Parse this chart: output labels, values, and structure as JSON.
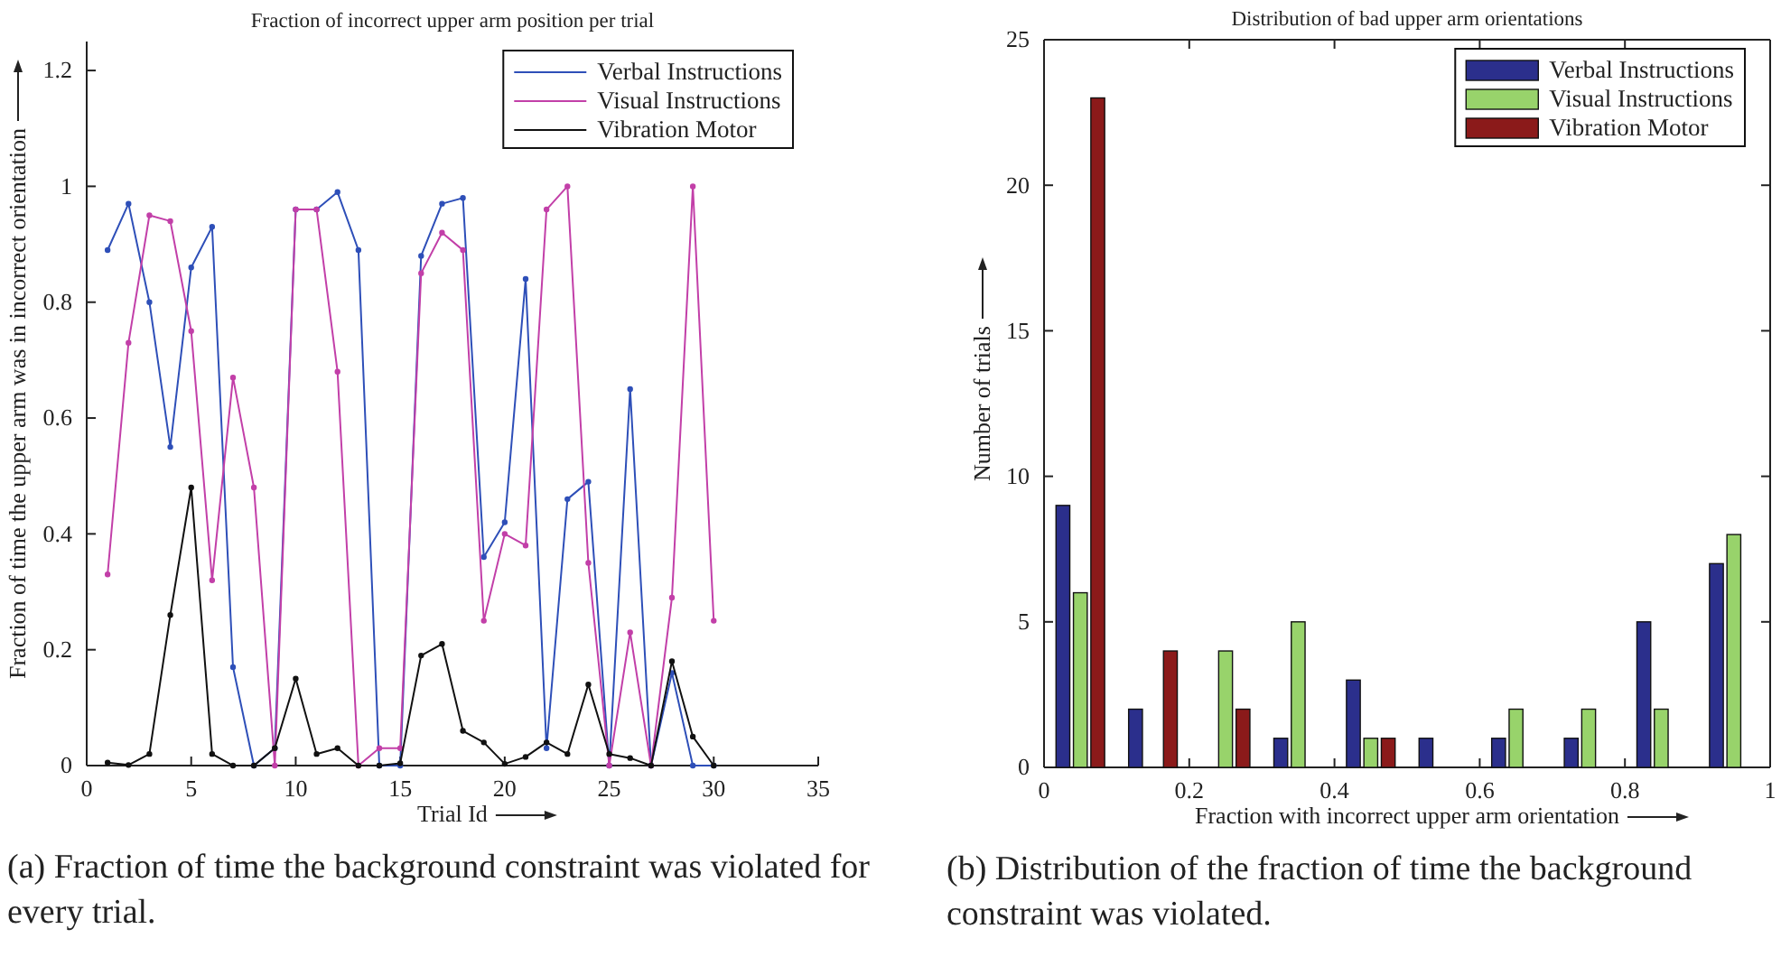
{
  "chart_data": [
    {
      "type": "line",
      "title": "Fraction of incorrect upper arm position per trial",
      "xlabel": "Trial Id",
      "ylabel": "Fraction of time the upper arm was in incorrect orientation",
      "x": [
        1,
        2,
        3,
        4,
        5,
        6,
        7,
        8,
        9,
        10,
        11,
        12,
        13,
        14,
        15,
        16,
        17,
        18,
        19,
        20,
        21,
        22,
        23,
        24,
        25,
        26,
        27,
        28,
        29,
        30
      ],
      "series": [
        {
          "name": "Verbal Instructions",
          "color": "#2e4fb8",
          "values": [
            0.89,
            0.97,
            0.8,
            0.55,
            0.86,
            0.93,
            0.17,
            0,
            0.03,
            0.96,
            0.96,
            0.99,
            0.89,
            0,
            0,
            0.88,
            0.97,
            0.98,
            0.36,
            0.42,
            0.84,
            0.03,
            0.46,
            0.49,
            0,
            0.65,
            0,
            0.16,
            0,
            0
          ]
        },
        {
          "name": "Visual Instructions",
          "color": "#c23fa8",
          "values": [
            0.33,
            0.73,
            0.95,
            0.94,
            0.75,
            0.32,
            0.67,
            0.48,
            0,
            0.96,
            0.96,
            0.68,
            0,
            0.03,
            0.03,
            0.85,
            0.92,
            0.89,
            0.25,
            0.4,
            0.38,
            0.96,
            1.0,
            0.35,
            0,
            0.23,
            0,
            0.29,
            1.0,
            0.25
          ]
        },
        {
          "name": "Vibration Motor",
          "color": "#111111",
          "values": [
            0.005,
            0.001,
            0.02,
            0.26,
            0.48,
            0.02,
            0,
            0,
            0.03,
            0.15,
            0.02,
            0.03,
            0,
            0,
            0.004,
            0.19,
            0.21,
            0.06,
            0.04,
            0.003,
            0.015,
            0.04,
            0.02,
            0.14,
            0.02,
            0.013,
            0,
            0.18,
            0.05,
            0
          ]
        }
      ],
      "xlim": [
        0,
        35
      ],
      "xticks": [
        0,
        5,
        10,
        15,
        20,
        25,
        30,
        35
      ],
      "ylim": [
        0,
        1.25
      ],
      "yticks": [
        0,
        0.2,
        0.4,
        0.6,
        0.8,
        1,
        1.2
      ],
      "marker": "circle",
      "line_style": "solid",
      "legend": "top right",
      "annotations": [
        "(a) Fraction of time the background constraint was violated for every trial."
      ]
    },
    {
      "type": "bar",
      "title": "Distribution of bad upper arm orientations",
      "xlabel": "Fraction with incorrect upper arm orientation",
      "ylabel": "Number of trials",
      "x": [
        0.05,
        0.15,
        0.25,
        0.35,
        0.45,
        0.55,
        0.65,
        0.75,
        0.85,
        0.95
      ],
      "series": [
        {
          "name": "Verbal Instructions",
          "color": "#2b2f8c",
          "values": [
            9,
            2,
            0,
            1,
            3,
            1,
            1,
            1,
            5,
            7
          ]
        },
        {
          "name": "Visual Instructions",
          "color": "#98d36b",
          "values": [
            6,
            0,
            4,
            5,
            1,
            0,
            2,
            2,
            2,
            8
          ]
        },
        {
          "name": "Vibration Motor",
          "color": "#8b1a1a",
          "values": [
            23,
            4,
            2,
            0,
            1,
            0,
            0,
            0,
            0,
            0
          ]
        }
      ],
      "xlim": [
        0,
        1
      ],
      "xticks": [
        0,
        0.2,
        0.4,
        0.6,
        0.8,
        1
      ],
      "ylim": [
        0,
        25
      ],
      "yticks": [
        0,
        5,
        10,
        15,
        20,
        25
      ],
      "legend": "top right",
      "annotations": [
        "(b) Distribution of the fraction of time the background constraint was violated."
      ]
    }
  ]
}
